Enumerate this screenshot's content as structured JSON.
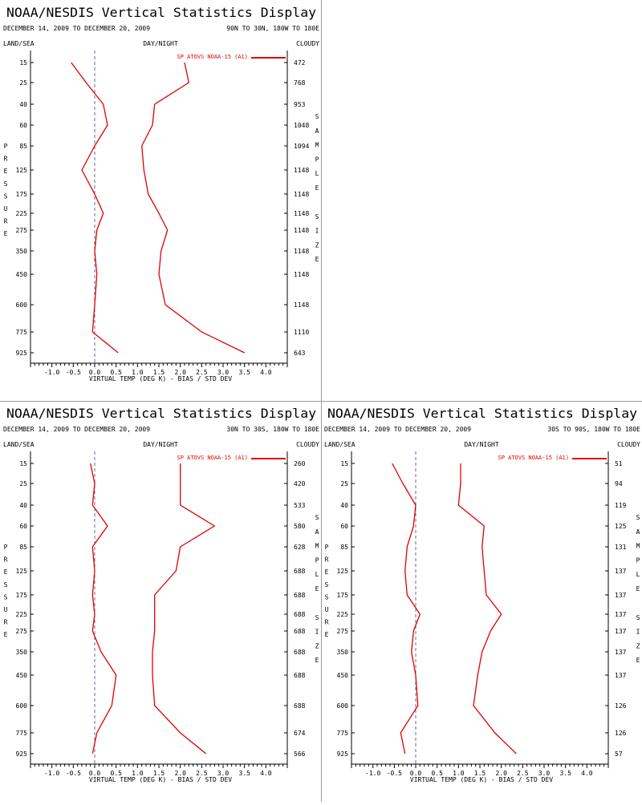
{
  "colors": {
    "series": "#e00000",
    "axis": "#000000",
    "zero_line": "#6a6a9a",
    "divider": "#9a9a9a"
  },
  "common": {
    "title": "NOAA/NESDIS Vertical Statistics Display",
    "date_range": "DECEMBER 14, 2009 TO DECEMBER 20, 2009",
    "land_sea": "LAND/SEA",
    "day_night": "DAY/NIGHT",
    "cloudy": "CLOUDY",
    "legend": "SP ATOVS NOAA-15 (A1)",
    "xlabel": "VIRTUAL TEMP (DEG K) - BIAS / STD DEV",
    "ylabel": "PRESSURE",
    "y2label": "SAMPLE SIZE"
  },
  "chart_data": [
    {
      "type": "line",
      "region": "90N TO 30N, 180W TO 180E",
      "pressure_levels": [
        "15",
        "25",
        "40",
        "60",
        "85",
        "125",
        "175",
        "225",
        "275",
        "350",
        "450",
        "600",
        "775",
        "925"
      ],
      "sample_size": [
        "472",
        "768",
        "953",
        "1048",
        "1094",
        "1148",
        "1148",
        "1148",
        "1148",
        "1148",
        "1148",
        "1148",
        "1110",
        "643"
      ],
      "xticks": [
        "-1.0",
        "-0.5",
        "0.0",
        "0.5",
        "1.0",
        "1.5",
        "2.0",
        "2.5",
        "3.0",
        "3.5",
        "4.0"
      ],
      "xlim": [
        -1.5,
        4.5
      ],
      "series": [
        {
          "name": "BIAS",
          "values": [
            -0.55,
            -0.2,
            0.2,
            0.3,
            0.0,
            -0.3,
            0.0,
            0.2,
            0.05,
            0.0,
            0.05,
            0.0,
            -0.05,
            0.55
          ]
        },
        {
          "name": "STD DEV",
          "values": [
            2.1,
            2.2,
            1.4,
            1.35,
            1.1,
            1.15,
            1.25,
            1.5,
            1.7,
            1.55,
            1.5,
            1.65,
            2.5,
            3.5
          ]
        }
      ]
    },
    {
      "type": "line",
      "region": "30N TO 30S, 180W TO 180E",
      "pressure_levels": [
        "15",
        "25",
        "40",
        "60",
        "85",
        "125",
        "175",
        "225",
        "275",
        "350",
        "450",
        "600",
        "775",
        "925"
      ],
      "sample_size": [
        "260",
        "420",
        "533",
        "580",
        "628",
        "688",
        "688",
        "688",
        "688",
        "688",
        "688",
        "688",
        "674",
        "566"
      ],
      "xticks": [
        "-1.0",
        "-0.5",
        "0.0",
        "0.5",
        "1.0",
        "1.5",
        "2.0",
        "2.5",
        "3.0",
        "3.5",
        "4.0"
      ],
      "xlim": [
        -1.5,
        4.5
      ],
      "series": [
        {
          "name": "BIAS",
          "values": [
            -0.1,
            0.0,
            -0.05,
            0.3,
            -0.05,
            0.0,
            -0.05,
            0.0,
            -0.05,
            0.15,
            0.5,
            0.4,
            0.05,
            -0.05
          ]
        },
        {
          "name": "STD DEV",
          "values": [
            2.0,
            2.0,
            2.0,
            2.8,
            2.0,
            1.9,
            1.4,
            1.4,
            1.4,
            1.35,
            1.35,
            1.4,
            2.0,
            2.6
          ]
        }
      ]
    },
    {
      "type": "line",
      "region": "30S TO 90S, 180W TO 180E",
      "pressure_levels": [
        "15",
        "25",
        "40",
        "60",
        "85",
        "125",
        "175",
        "225",
        "275",
        "350",
        "450",
        "600",
        "775",
        "925"
      ],
      "sample_size": [
        "51",
        "94",
        "119",
        "125",
        "131",
        "137",
        "137",
        "137",
        "137",
        "137",
        "137",
        "126",
        "126",
        "57"
      ],
      "xticks": [
        "-1.0",
        "-0.5",
        "0.0",
        "0.5",
        "1.0",
        "1.5",
        "2.0",
        "2.5",
        "3.0",
        "3.5",
        "4.0"
      ],
      "xlim": [
        -1.5,
        4.5
      ],
      "series": [
        {
          "name": "BIAS",
          "values": [
            -0.55,
            -0.3,
            0.0,
            -0.05,
            -0.2,
            -0.25,
            -0.2,
            0.1,
            -0.05,
            -0.1,
            0.0,
            0.05,
            -0.35,
            -0.25
          ]
        },
        {
          "name": "STD DEV",
          "values": [
            1.05,
            1.05,
            1.0,
            1.6,
            1.55,
            1.6,
            1.65,
            2.0,
            1.75,
            1.55,
            1.45,
            1.35,
            1.85,
            2.35
          ]
        }
      ]
    }
  ]
}
